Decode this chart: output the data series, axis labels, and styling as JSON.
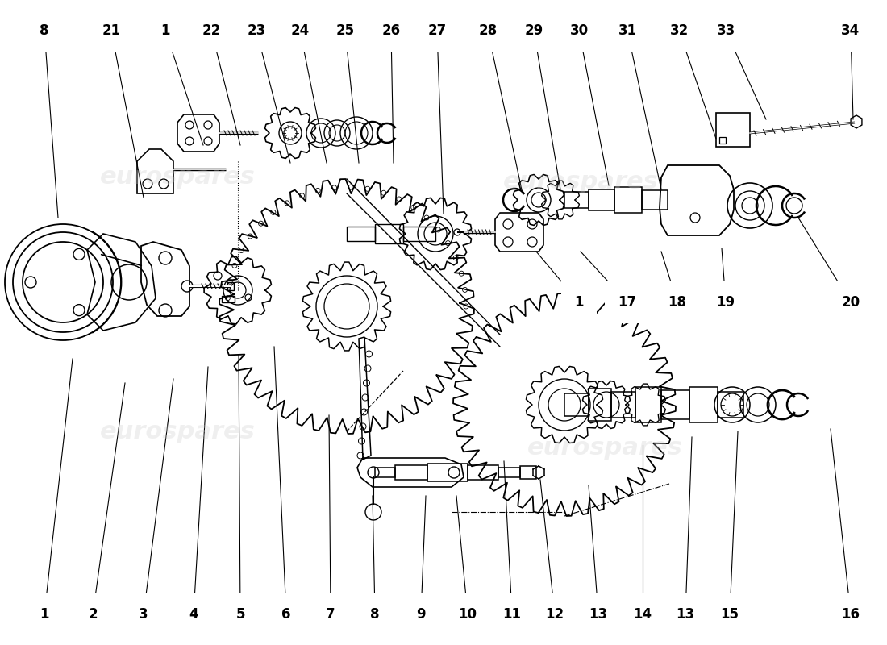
{
  "background_color": "#ffffff",
  "watermark_text": "eurospares",
  "line_color": "#000000",
  "watermark_color": "#cccccc",
  "font_size_labels": 12,
  "font_size_watermark": 22,
  "top_callouts": [
    [
      "1",
      55,
      38,
      90,
      355
    ],
    [
      "2",
      115,
      38,
      155,
      325
    ],
    [
      "3",
      178,
      38,
      215,
      330
    ],
    [
      "4",
      240,
      38,
      258,
      345
    ],
    [
      "5",
      298,
      38,
      296,
      360
    ],
    [
      "6",
      355,
      38,
      340,
      370
    ],
    [
      "7",
      410,
      38,
      408,
      285
    ],
    [
      "8",
      465,
      38,
      462,
      185
    ],
    [
      "9",
      522,
      38,
      528,
      185
    ],
    [
      "10",
      580,
      38,
      566,
      185
    ],
    [
      "11",
      635,
      38,
      625,
      228
    ],
    [
      "12",
      688,
      38,
      670,
      205
    ],
    [
      "13",
      742,
      38,
      730,
      198
    ],
    [
      "14",
      797,
      38,
      797,
      248
    ],
    [
      "13",
      850,
      38,
      858,
      258
    ],
    [
      "15",
      905,
      38,
      915,
      265
    ],
    [
      "16",
      1055,
      38,
      1030,
      268
    ]
  ],
  "bottom_callouts": [
    [
      "8",
      55,
      762,
      72,
      530
    ],
    [
      "21",
      138,
      762,
      178,
      555
    ],
    [
      "1",
      205,
      762,
      252,
      620
    ],
    [
      "22",
      262,
      762,
      298,
      620
    ],
    [
      "23",
      318,
      762,
      360,
      598
    ],
    [
      "24",
      372,
      762,
      405,
      598
    ],
    [
      "25",
      428,
      762,
      445,
      598
    ],
    [
      "26",
      485,
      762,
      488,
      598
    ],
    [
      "27",
      542,
      762,
      550,
      535
    ],
    [
      "28",
      605,
      762,
      648,
      560
    ],
    [
      "29",
      662,
      762,
      695,
      565
    ],
    [
      "30",
      718,
      762,
      755,
      570
    ],
    [
      "31",
      778,
      762,
      820,
      565
    ],
    [
      "32",
      842,
      762,
      888,
      628
    ],
    [
      "33",
      900,
      762,
      950,
      652
    ],
    [
      "34",
      1055,
      762,
      1058,
      652
    ]
  ],
  "mid_callouts": [
    [
      "1",
      718,
      425,
      665,
      488
    ],
    [
      "17",
      778,
      425,
      720,
      488
    ],
    [
      "18",
      840,
      425,
      820,
      488
    ],
    [
      "19",
      900,
      425,
      895,
      492
    ],
    [
      "20",
      1055,
      425,
      990,
      530
    ]
  ]
}
